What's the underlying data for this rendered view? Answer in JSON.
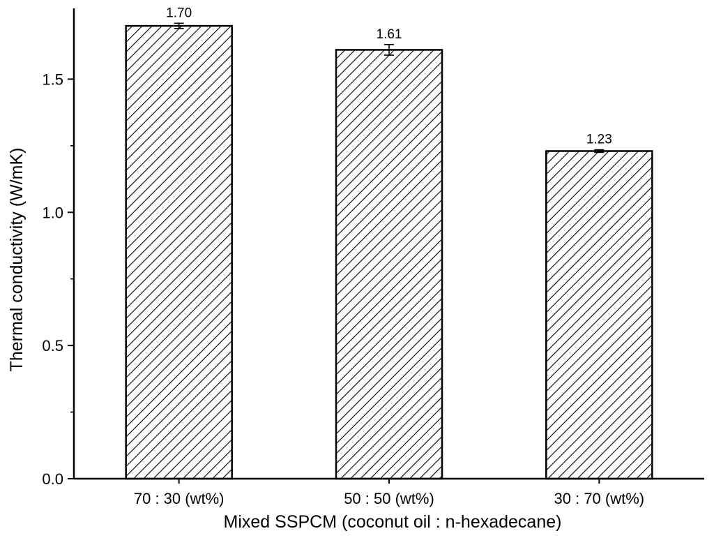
{
  "chart_data": {
    "type": "bar",
    "categories": [
      "70 : 30 (wt%)",
      "50 : 50 (wt%)",
      "30 : 70 (wt%)"
    ],
    "values": [
      1.7,
      1.61,
      1.23
    ],
    "errors": [
      0.01,
      0.02,
      0.005
    ],
    "value_labels": [
      "1.70",
      "1.61",
      "1.23"
    ],
    "xlabel": "Mixed SSPCM (coconut oil : n-hexadecane)",
    "ylabel": "Thermal conductivity (W/mK)",
    "ylim": [
      0,
      1.75
    ],
    "yticks": [
      0.0,
      0.5,
      1.0,
      1.5
    ],
    "ytick_labels": [
      "0.0",
      "0.5",
      "1.0",
      "1.5"
    ],
    "grid": false,
    "bar_fill": "diagonal-hatch",
    "bar_color": "#ffffff",
    "hatch_color": "#000000"
  }
}
